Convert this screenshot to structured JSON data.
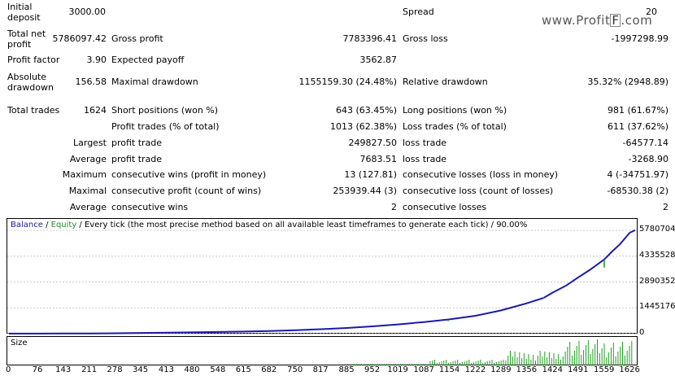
{
  "watermark": {
    "pre": "www.Profit",
    "f": "F",
    "post": ".com"
  },
  "stats": {
    "initial_deposit": {
      "label": "Initial deposit",
      "value": "3000.00"
    },
    "spread": {
      "label": "Spread",
      "value": "20"
    },
    "total_net_profit": {
      "label": "Total net profit",
      "value": "5786097.42"
    },
    "gross_profit": {
      "label": "Gross profit",
      "value": "7783396.41"
    },
    "gross_loss": {
      "label": "Gross loss",
      "value": "-1997298.99"
    },
    "profit_factor": {
      "label": "Profit factor",
      "value": "3.90"
    },
    "expected_payoff": {
      "label": "Expected payoff",
      "value": "3562.87"
    },
    "absolute_drawdown": {
      "label": "Absolute drawdown",
      "value": "156.58"
    },
    "maximal_drawdown": {
      "label": "Maximal drawdown",
      "value": "1155159.30 (24.48%)"
    },
    "relative_drawdown": {
      "label": "Relative drawdown",
      "value": "35.32% (2948.89)"
    },
    "total_trades": {
      "label": "Total trades",
      "value": "1624"
    },
    "short_positions": {
      "label": "Short positions (won %)",
      "value": "643 (63.45%)"
    },
    "long_positions": {
      "label": "Long positions (won %)",
      "value": "981 (61.67%)"
    },
    "profit_trades": {
      "label": "Profit trades (% of total)",
      "value": "1013 (62.38%)"
    },
    "loss_trades": {
      "label": "Loss trades (% of total)",
      "value": "611 (37.62%)"
    },
    "largest": {
      "label": "Largest",
      "profit_label": "profit trade",
      "profit_value": "249827.50",
      "loss_label": "loss trade",
      "loss_value": "-64577.14"
    },
    "average": {
      "label": "Average",
      "profit_label": "profit trade",
      "profit_value": "7683.51",
      "loss_label": "loss trade",
      "loss_value": "-3268.90"
    },
    "maximum": {
      "label": "Maximum",
      "wins_label": "consecutive wins (profit in money)",
      "wins_value": "13 (127.81)",
      "losses_label": "consecutive losses (loss in money)",
      "losses_value": "4 (-34751.97)"
    },
    "maximal": {
      "label": "Maximal",
      "wins_label": "consecutive profit (count of wins)",
      "wins_value": "253939.44 (3)",
      "losses_label": "consecutive loss (count of losses)",
      "losses_value": "-68530.38 (2)"
    },
    "average2": {
      "label": "Average",
      "wins_label": "consecutive wins",
      "wins_value": "2",
      "losses_label": "consecutive losses",
      "losses_value": "2"
    }
  },
  "legend": {
    "balance": "Balance",
    "sep1": " / ",
    "equity": "Equity",
    "rest": " / Every tick (the most precise method based on all available least timeframes to generate each tick) / 90.00%"
  },
  "size_label": "Size",
  "colors": {
    "balance": "#1a1aa8",
    "equity": "#1f8f1f",
    "volume": "#1f9f1f"
  },
  "chart_data": {
    "type": "line",
    "y_ticks": [
      "5780704",
      "4335528",
      "2890352",
      "1445176",
      "0"
    ],
    "x_ticks": [
      "0",
      "76",
      "143",
      "211",
      "278",
      "345",
      "413",
      "480",
      "548",
      "615",
      "682",
      "750",
      "817",
      "885",
      "952",
      "1019",
      "1087",
      "1154",
      "1222",
      "1289",
      "1356",
      "1424",
      "1491",
      "1559",
      "1626"
    ],
    "ylim": [
      0,
      5780704
    ],
    "xlim": [
      0,
      1640
    ],
    "series": [
      {
        "name": "Balance",
        "x": [
          0,
          76,
          143,
          211,
          278,
          345,
          413,
          480,
          548,
          615,
          682,
          750,
          817,
          885,
          952,
          1019,
          1087,
          1154,
          1222,
          1289,
          1356,
          1400,
          1424,
          1460,
          1491,
          1520,
          1559,
          1580,
          1600,
          1626,
          1640
        ],
        "values": [
          3000,
          5000,
          10000,
          15000,
          25000,
          40000,
          55000,
          75000,
          95000,
          120000,
          150000,
          190000,
          250000,
          320000,
          410000,
          520000,
          650000,
          800000,
          1000000,
          1300000,
          1700000,
          2000000,
          2300000,
          2700000,
          3150000,
          3550000,
          4150000,
          4600000,
          5000000,
          5650000,
          5786097
        ]
      }
    ]
  }
}
